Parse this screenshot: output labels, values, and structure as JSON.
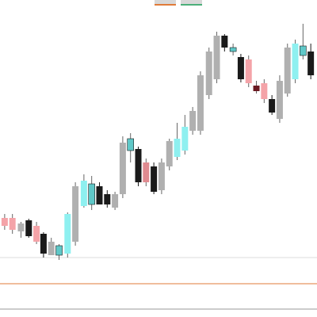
{
  "chart_data": {
    "type": "candlestick",
    "x": [
      -2,
      8,
      19,
      29,
      39,
      48,
      58,
      68,
      79,
      89,
      100,
      110,
      120,
      130,
      140,
      150,
      160,
      170,
      180,
      190,
      200,
      210,
      220,
      230,
      240,
      250,
      261,
      271,
      281,
      292,
      302,
      312,
      322,
      332,
      342,
      352,
      362,
      372,
      382,
      392
    ],
    "xlim": [
      -8,
      400
    ],
    "ylim": [
      0,
      400
    ],
    "open": [
      115,
      110,
      108,
      122,
      115,
      105,
      95,
      78,
      80,
      95,
      140,
      142,
      165,
      155,
      138,
      155,
      210,
      212,
      195,
      190,
      160,
      190,
      202,
      210,
      235,
      235,
      280,
      300,
      355,
      335,
      328,
      325,
      292,
      295,
      275,
      250,
      282,
      300,
      330,
      335
    ],
    "high": [
      130,
      130,
      120,
      124,
      120,
      107,
      100,
      92,
      132,
      170,
      180,
      178,
      170,
      160,
      158,
      228,
      232,
      215,
      200,
      195,
      200,
      225,
      245,
      255,
      265,
      310,
      340,
      360,
      357,
      345,
      332,
      330,
      298,
      300,
      280,
      305,
      345,
      350,
      370,
      345
    ],
    "low": [
      110,
      105,
      100,
      100,
      92,
      75,
      78,
      72,
      75,
      90,
      138,
      135,
      142,
      138,
      135,
      150,
      195,
      165,
      165,
      155,
      155,
      185,
      198,
      205,
      230,
      230,
      275,
      295,
      335,
      330,
      296,
      290,
      282,
      270,
      255,
      245,
      278,
      295,
      325,
      300
    ],
    "close": [
      125,
      125,
      118,
      102,
      95,
      80,
      78,
      90,
      130,
      165,
      172,
      168,
      142,
      142,
      155,
      220,
      225,
      170,
      170,
      158,
      195,
      222,
      225,
      240,
      260,
      305,
      335,
      355,
      340,
      340,
      300,
      295,
      285,
      275,
      258,
      298,
      340,
      345,
      342,
      305
    ],
    "colors": [
      "#f4a3a8",
      "#f4a3a8",
      "#b0b0b0",
      "#1a1a1a",
      "#f4a3a8",
      "#1a1a1a",
      "#b0b0b0",
      "#5fc8c8",
      "#8ef0f0",
      "#b0b0b0",
      "#8ef0f0",
      "#5fc8c8",
      "#1a1a1a",
      "#1a1a1a",
      "#b0b0b0",
      "#b0b0b0",
      "#5fc8c8",
      "#1a1a1a",
      "#e08a90",
      "#1a1a1a",
      "#b0b0b0",
      "#b0b0b0",
      "#8ef0f0",
      "#8ef0f0",
      "#b0b0b0",
      "#b0b0b0",
      "#b0b0b0",
      "#b0b0b0",
      "#1a1a1a",
      "#5fc8c8",
      "#1a1a1a",
      "#f4a3a8",
      "#6b1a22",
      "#f4a3a8",
      "#1a1a1a",
      "#b0b0b0",
      "#b0b0b0",
      "#8ef0f0",
      "#5fc8c8",
      "#1a1a1a"
    ],
    "hlines": [
      {
        "value": 75,
        "color": "#dddddd"
      },
      {
        "value": 42,
        "color": "#e07b39"
      }
    ]
  }
}
